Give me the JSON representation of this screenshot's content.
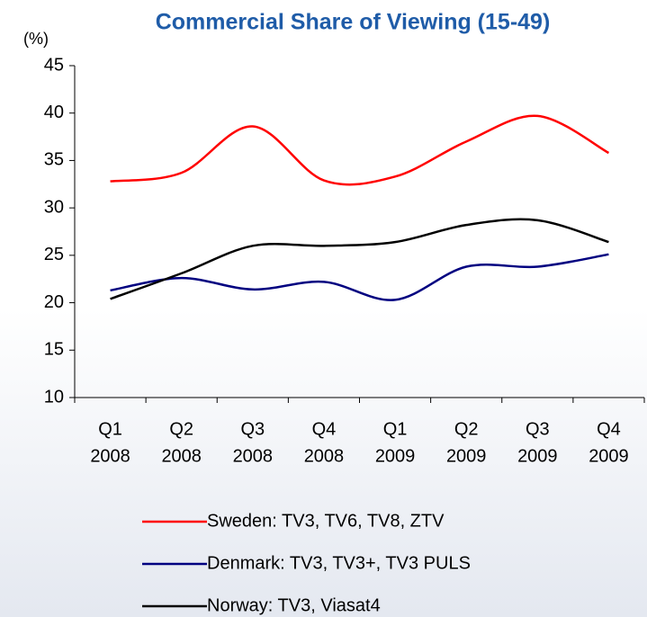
{
  "chart_data": {
    "type": "line",
    "title": "Commercial Share of Viewing (15-49)",
    "y_label": "(%)",
    "categories": [
      [
        "Q1",
        "2008"
      ],
      [
        "Q2",
        "2008"
      ],
      [
        "Q3",
        "2008"
      ],
      [
        "Q4",
        "2008"
      ],
      [
        "Q1",
        "2009"
      ],
      [
        "Q2",
        "2009"
      ],
      [
        "Q3",
        "2009"
      ],
      [
        "Q4",
        "2009"
      ]
    ],
    "series": [
      {
        "name": "Sweden: TV3, TV6, TV8, ZTV",
        "color": "#ff0000",
        "values": [
          32.8,
          33.7,
          38.6,
          32.9,
          33.3,
          37.0,
          39.7,
          35.8
        ]
      },
      {
        "name": "Denmark: TV3, TV3+, TV3 PULS",
        "color": "#000080",
        "values": [
          21.3,
          22.6,
          21.4,
          22.2,
          20.3,
          23.8,
          23.8,
          25.1
        ]
      },
      {
        "name": "Norway: TV3, Viasat4",
        "color": "#000000",
        "values": [
          20.4,
          23.1,
          26.0,
          26.0,
          26.4,
          28.2,
          28.7,
          26.4
        ]
      }
    ],
    "ylim": [
      10,
      45
    ],
    "yticks": [
      10,
      15,
      20,
      25,
      30,
      35,
      40,
      45
    ],
    "grid": false,
    "legend": "bottom"
  }
}
